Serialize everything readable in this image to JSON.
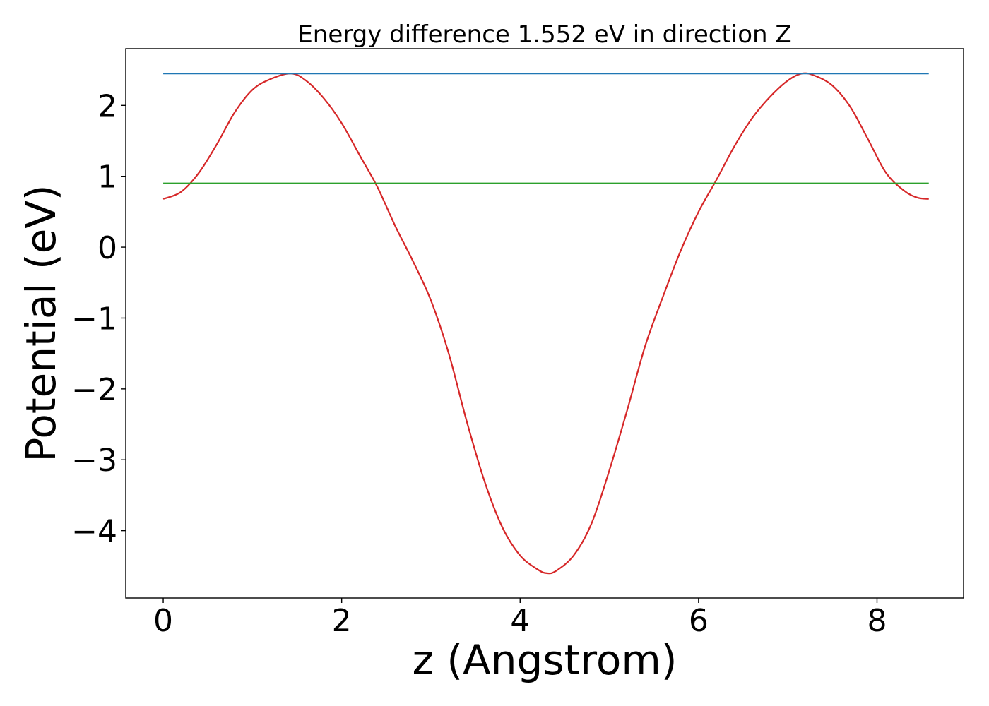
{
  "chart_data": {
    "type": "line",
    "title": "Energy difference 1.552 eV in direction Z",
    "xlabel": "z (Angstrom)",
    "ylabel": "Potential (eV)",
    "xlim": [
      -0.42,
      8.97
    ],
    "ylim": [
      -4.95,
      2.8
    ],
    "xticks": [
      {
        "value": 0,
        "label": "0"
      },
      {
        "value": 2,
        "label": "2"
      },
      {
        "value": 4,
        "label": "4"
      },
      {
        "value": 6,
        "label": "6"
      },
      {
        "value": 8,
        "label": "8"
      }
    ],
    "yticks": [
      {
        "value": 2,
        "label": "2"
      },
      {
        "value": 1,
        "label": "1"
      },
      {
        "value": 0,
        "label": "0"
      },
      {
        "value": -1,
        "label": "−1"
      },
      {
        "value": -2,
        "label": "−2"
      },
      {
        "value": -3,
        "label": "−3"
      },
      {
        "value": -4,
        "label": "−4"
      }
    ],
    "grid": false,
    "series": [
      {
        "color": "#d62728",
        "x": [
          0,
          0.2,
          0.4,
          0.6,
          0.8,
          1.0,
          1.2,
          1.43,
          1.6,
          1.8,
          2.0,
          2.2,
          2.4,
          2.6,
          2.8,
          3.0,
          3.2,
          3.4,
          3.6,
          3.8,
          4.0,
          4.2,
          4.3,
          4.4,
          4.6,
          4.8,
          5.0,
          5.2,
          5.4,
          5.6,
          5.8,
          6.0,
          6.2,
          6.4,
          6.6,
          6.8,
          7.0,
          7.16,
          7.3,
          7.5,
          7.7,
          7.9,
          8.1,
          8.3,
          8.45,
          8.58
        ],
        "y": [
          0.68,
          0.78,
          1.05,
          1.45,
          1.9,
          2.22,
          2.37,
          2.45,
          2.35,
          2.1,
          1.75,
          1.3,
          0.85,
          0.3,
          -0.2,
          -0.75,
          -1.5,
          -2.45,
          -3.3,
          -3.95,
          -4.35,
          -4.55,
          -4.6,
          -4.57,
          -4.35,
          -3.9,
          -3.15,
          -2.3,
          -1.4,
          -0.7,
          -0.05,
          0.5,
          0.95,
          1.42,
          1.82,
          2.12,
          2.35,
          2.45,
          2.42,
          2.28,
          1.98,
          1.52,
          1.05,
          0.8,
          0.7,
          0.68
        ]
      },
      {
        "color": "#1f77b4",
        "x": [
          0,
          8.58
        ],
        "y": [
          2.45,
          2.45
        ]
      },
      {
        "color": "#2ca02c",
        "x": [
          0,
          8.58
        ],
        "y": [
          0.9,
          0.9
        ]
      }
    ]
  }
}
